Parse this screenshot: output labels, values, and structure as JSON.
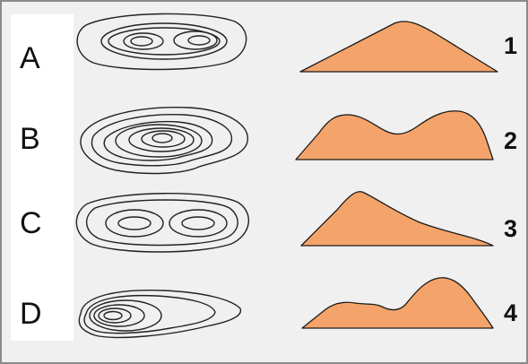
{
  "letters": [
    "A",
    "B",
    "C",
    "D"
  ],
  "numbers": [
    "1",
    "2",
    "3",
    "4"
  ],
  "colors": {
    "profile_fill": "#f4a46a",
    "profile_stroke": "#1a1a1a",
    "contour_stroke": "#222222",
    "background": "#f0f0f0",
    "letter_panel": "#ffffff",
    "frame_border": "#8a8a8a"
  }
}
